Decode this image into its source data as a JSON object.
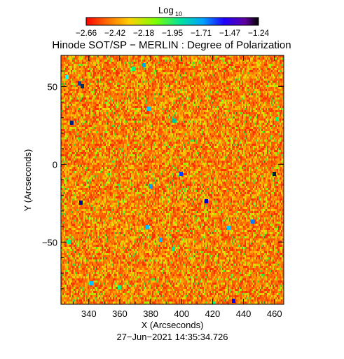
{
  "chart_data": {
    "type": "heatmap",
    "title": "Hinode SOT/SP − MERLIN : Degree of Polarization",
    "colorbar": {
      "label": "Log",
      "label_sub": "10",
      "ticks": [
        "−2.66",
        "−2.42",
        "−2.18",
        "−1.95",
        "−1.71",
        "−1.47",
        "−1.24"
      ],
      "range": [
        -2.66,
        -1.24
      ],
      "colormap": [
        "#ff0000",
        "#ff8000",
        "#ffff00",
        "#00ff00",
        "#00ffff",
        "#0000ff",
        "#8000ff",
        "#000000"
      ]
    },
    "xlabel": "X (Arcseconds)",
    "ylabel": "Y (Arcseconds)",
    "xlim": [
      322,
      466
    ],
    "ylim": [
      -90,
      70
    ],
    "xticks": [
      340,
      360,
      380,
      400,
      420,
      440,
      460
    ],
    "yticks": [
      50,
      0,
      -50
    ],
    "field": {
      "dominant_level": -2.5,
      "description_levels": [
        "dominant orange/red",
        "scattered yellow-green",
        "sparse blue/black points"
      ]
    }
  },
  "timestamp": "27−Jun−2021 14:35:34.726",
  "colors": {
    "background": "#ffffff",
    "axes": "#000000"
  }
}
